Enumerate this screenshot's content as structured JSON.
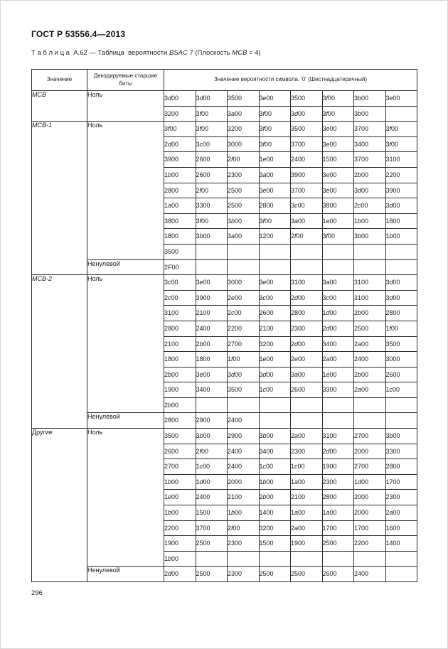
{
  "page": {
    "header": "ГОСТ Р 53556.4—2013",
    "page_number": "296"
  },
  "table": {
    "caption": {
      "label": "Т а б л и ц а  А.62 — Таблица  вероятности ",
      "term1": "BSAC",
      "mid": " 7 (Плоскость ",
      "term2": "MCB",
      "tail": " = 4)"
    },
    "headers": {
      "col_value": "Значение",
      "col_bits": "Декодируемые старшие биты",
      "col_prob": "Значение вероятности символа. '0' (Шестнадцатеричный)"
    },
    "sections": [
      {
        "value": "MCB",
        "subsections": [
          {
            "label": "Ноль",
            "rows": [
              [
                "3d00",
                "3d00",
                "3500",
                "3e00",
                "3500",
                "3f00",
                "3b00",
                "3e00"
              ],
              [
                "3200",
                "3f00",
                "3a00",
                "3f00",
                "3d00",
                "3f00",
                "3b00",
                ""
              ]
            ]
          }
        ]
      },
      {
        "value": "MCB-1",
        "subsections": [
          {
            "label": "Ноль",
            "rows": [
              [
                "3f00",
                "3f00",
                "3200",
                "3f00",
                "3500",
                "3e00",
                "3700",
                "3f00"
              ],
              [
                "2d00",
                "3c00",
                "3000",
                "3f00",
                "3700",
                "3e00",
                "3400",
                "3f00"
              ],
              [
                "3900",
                "2600",
                "2f00",
                "1e00",
                "2400",
                "1500",
                "3700",
                "3100"
              ],
              [
                "1b00",
                "2600",
                "2300",
                "3a00",
                "3900",
                "3e00",
                "2b00",
                "2200"
              ],
              [
                "2800",
                "2f00",
                "2500",
                "3e00",
                "3700",
                "3e00",
                "3d00",
                "3900"
              ],
              [
                "1a00",
                "3300",
                "2500",
                "2800",
                "3c00",
                "3800",
                "2c00",
                "3d00"
              ],
              [
                "3800",
                "3f00",
                "3b00",
                "3f00",
                "3a00",
                "1e00",
                "1b00",
                "1800"
              ],
              [
                "1800",
                "3b00",
                "3a00",
                "1200",
                "2f00",
                "3f00",
                "3b00",
                "1b00"
              ],
              [
                "3500",
                "",
                "",
                "",
                "",
                "",
                "",
                ""
              ]
            ]
          },
          {
            "label": "Ненулевой",
            "rows": [
              [
                "2F00",
                "",
                "",
                "",
                "",
                "",
                "",
                ""
              ]
            ]
          }
        ]
      },
      {
        "value": "MCB-2",
        "subsections": [
          {
            "label": "Ноль",
            "rows": [
              [
                "3c00",
                "3e00",
                "3000",
                "3e00",
                "3100",
                "3a00",
                "3100",
                "3d00"
              ],
              [
                "2c00",
                "3900",
                "2e00",
                "3c00",
                "2d00",
                "3c00",
                "3100",
                "3d00"
              ],
              [
                "3100",
                "2100",
                "2c00",
                "2600",
                "2800",
                "1d00",
                "2b00",
                "2800"
              ],
              [
                "2800",
                "2400",
                "2200",
                "2100",
                "2300",
                "2d00",
                "2500",
                "1f00"
              ],
              [
                "2100",
                "2b00",
                "2700",
                "3200",
                "2d00",
                "3400",
                "2a00",
                "3500"
              ],
              [
                "1800",
                "1800",
                "1f00",
                "1e00",
                "2e00",
                "2a00",
                "2400",
                "3000"
              ],
              [
                "2b00",
                "3e00",
                "3d00",
                "3d00",
                "3a00",
                "1e00",
                "2b00",
                "2600"
              ],
              [
                "1900",
                "3400",
                "3500",
                "1c00",
                "2600",
                "3300",
                "2a00",
                "1c00"
              ],
              [
                "2b00",
                "",
                "",
                "",
                "",
                "",
                "",
                ""
              ]
            ]
          },
          {
            "label": "Ненулевой",
            "rows": [
              [
                "2800",
                "2900",
                "2400",
                "",
                "",
                "",
                "",
                ""
              ]
            ]
          }
        ]
      },
      {
        "value": "Другие",
        "subsections": [
          {
            "label": "Ноль",
            "rows": [
              [
                "3500",
                "3b00",
                "2900",
                "3b00",
                "2a00",
                "3100",
                "2700",
                "3b00"
              ],
              [
                "2600",
                "2f00",
                "2400",
                "3400",
                "2300",
                "2d00",
                "2000",
                "3300"
              ],
              [
                "2700",
                "1c00",
                "2400",
                "1c00",
                "1c00",
                "1900",
                "2700",
                "2800"
              ],
              [
                "1b00",
                "1d00",
                "2000",
                "1b00",
                "1a00",
                "2300",
                "1d00",
                "1700"
              ],
              [
                "1e00",
                "2400",
                "2100",
                "2b00",
                "2100",
                "2800",
                "2000",
                "2300"
              ],
              [
                "1b00",
                "1500",
                "1b00",
                "1400",
                "1a00",
                "1a00",
                "2000",
                "2a00"
              ],
              [
                "2200",
                "3700",
                "2f00",
                "3200",
                "2a00",
                "1700",
                "1700",
                "1600"
              ],
              [
                "1900",
                "2500",
                "2300",
                "1500",
                "1900",
                "2500",
                "2200",
                "1400"
              ],
              [
                "1b00",
                "",
                "",
                "",
                "",
                "",
                "",
                ""
              ]
            ]
          },
          {
            "label": "Ненулевой",
            "rows": [
              [
                "2d00",
                "2500",
                "2300",
                "2500",
                "2500",
                "2600",
                "2400",
                ""
              ]
            ]
          }
        ]
      }
    ]
  }
}
